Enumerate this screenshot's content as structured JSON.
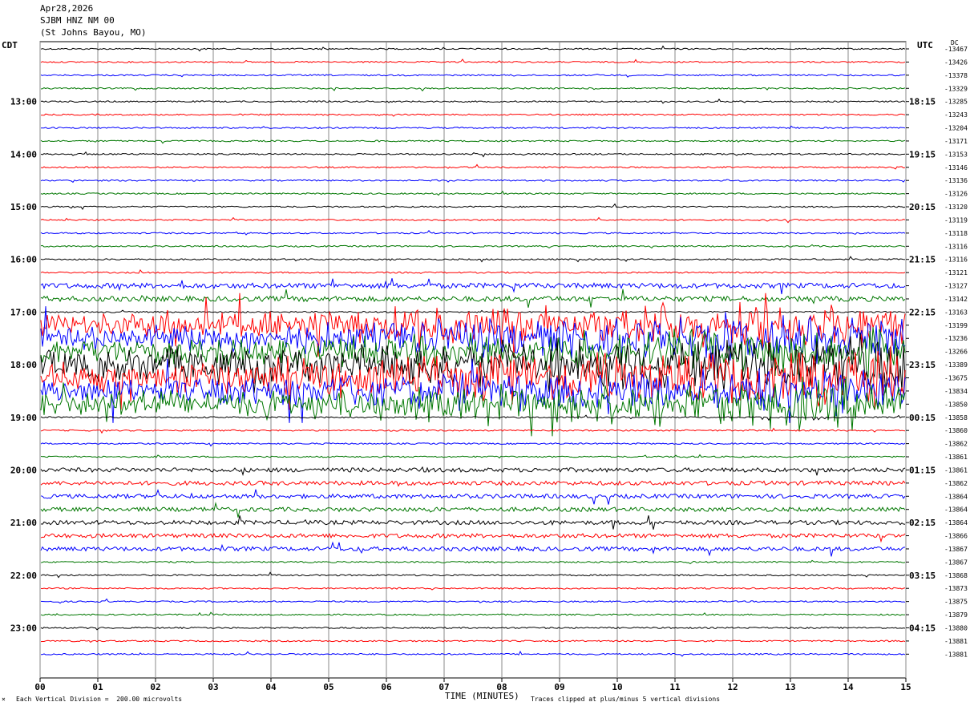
{
  "header": {
    "date": "Apr28,2026",
    "station": "SJBM HNZ NM 00",
    "location": "(St Johns Bayou, MO)"
  },
  "left_tz": "CDT",
  "right_tz": "UTC",
  "dc_label": "DC",
  "footer": {
    "scale_note": "Each Vertical Division =  200.00 microvolts",
    "clip_note": "Traces clipped at plus/minus 5 vertical divisions",
    "marker": "×"
  },
  "colors": [
    "#000000",
    "#ff0000",
    "#0000ff",
    "#007700"
  ],
  "chart_data": {
    "type": "line",
    "xlabel": "TIME (MINUTES)",
    "x_ticks": [
      "00",
      "01",
      "02",
      "03",
      "04",
      "05",
      "06",
      "07",
      "08",
      "09",
      "10",
      "11",
      "12",
      "13",
      "14",
      "15"
    ],
    "xlim": [
      0,
      15
    ],
    "left_hour_labels": [
      "13:00",
      "14:00",
      "15:00",
      "16:00",
      "17:00",
      "18:00",
      "19:00",
      "20:00",
      "21:00",
      "22:00",
      "23:00"
    ],
    "right_hour_labels": [
      "18:15",
      "19:15",
      "20:15",
      "21:15",
      "22:15",
      "23:15",
      "00:15",
      "01:15",
      "02:15",
      "03:15",
      "04:15"
    ],
    "dc_offsets": [
      -13467,
      -13426,
      -13378,
      -13329,
      -13285,
      -13243,
      -13204,
      -13171,
      -13153,
      -13146,
      -13136,
      -13126,
      -13120,
      -13119,
      -13118,
      -13116,
      -13116,
      -13121,
      -13127,
      -13142,
      -13163,
      -13199,
      -13236,
      -13266,
      -13389,
      -13675,
      -13834,
      -13850,
      -13858,
      -13860,
      -13862,
      -13861,
      -13861,
      -13862,
      -13864,
      -13864,
      -13864,
      -13866,
      -13867,
      -13867,
      -13868,
      -13873,
      -13875,
      -13879,
      -13880,
      -13881,
      -13881
    ]
  }
}
